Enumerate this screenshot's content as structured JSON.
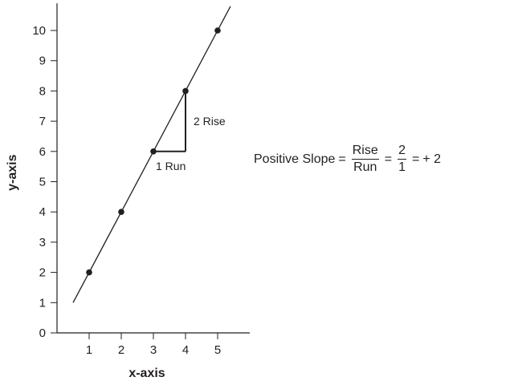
{
  "chart_data": {
    "type": "line",
    "xlabel": "x-axis",
    "ylabel": "y-axis",
    "xlim": [
      0,
      6
    ],
    "ylim": [
      0,
      10.9
    ],
    "x_ticks": [
      1,
      2,
      3,
      4,
      5
    ],
    "y_ticks": [
      0,
      1,
      2,
      3,
      4,
      5,
      6,
      7,
      8,
      9,
      10
    ],
    "line": {
      "x": [
        0.5,
        5.4
      ],
      "y": [
        1,
        10.8
      ]
    },
    "points": [
      {
        "x": 1,
        "y": 2
      },
      {
        "x": 2,
        "y": 4
      },
      {
        "x": 3,
        "y": 6
      },
      {
        "x": 4,
        "y": 8
      },
      {
        "x": 5,
        "y": 10
      }
    ],
    "slope_triangle": {
      "x0": 3,
      "y0": 6,
      "x1": 4,
      "y1": 8
    },
    "annotations": {
      "run": "1 Run",
      "rise": "2 Rise"
    },
    "grid": false,
    "color": "#231f20"
  },
  "formula": {
    "lhs": "Positive Slope",
    "eq1": "=",
    "frac1_num": "Rise",
    "frac1_den": "Run",
    "eq2": "=",
    "frac2_num": "2",
    "frac2_den": "1",
    "eq3": "=",
    "result": "+ 2"
  }
}
